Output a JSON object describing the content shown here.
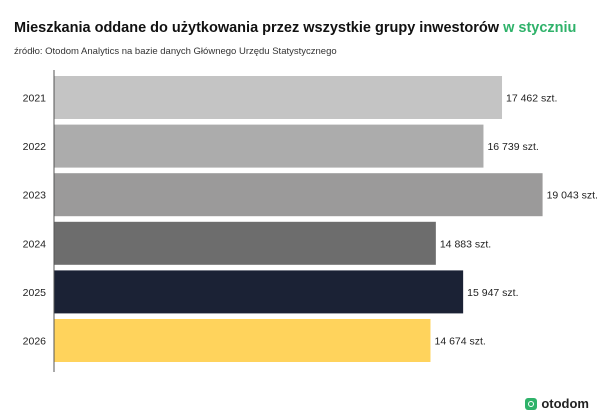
{
  "header": {
    "title": "Mieszkania oddane do użytkowania przez wszystkie grupy  inwestorów",
    "title_accent": "w styczniu",
    "source": "źródło: Otodom Analytics na bazie danych Głównego Urzędu Statystycznego"
  },
  "brand": {
    "logo_text": "otodom",
    "accent_color": "#2fb26a"
  },
  "chart_data": {
    "type": "bar",
    "orientation": "horizontal",
    "categories": [
      "2021",
      "2022",
      "2023",
      "2024",
      "2025",
      "2026"
    ],
    "values": [
      17462,
      16739,
      19043,
      14883,
      15947,
      14674
    ],
    "value_labels": [
      "17 462 szt.",
      "16 739 szt.",
      "19 043 szt.",
      "14 883 szt.",
      "15 947 szt.",
      "14 674 szt."
    ],
    "bar_colors": [
      "#c4c4c4",
      "#acacac",
      "#9b9a9a",
      "#6d6d6d",
      "#1b2235",
      "#ffd35c"
    ],
    "xlim": [
      0,
      19800
    ],
    "grid": false
  }
}
